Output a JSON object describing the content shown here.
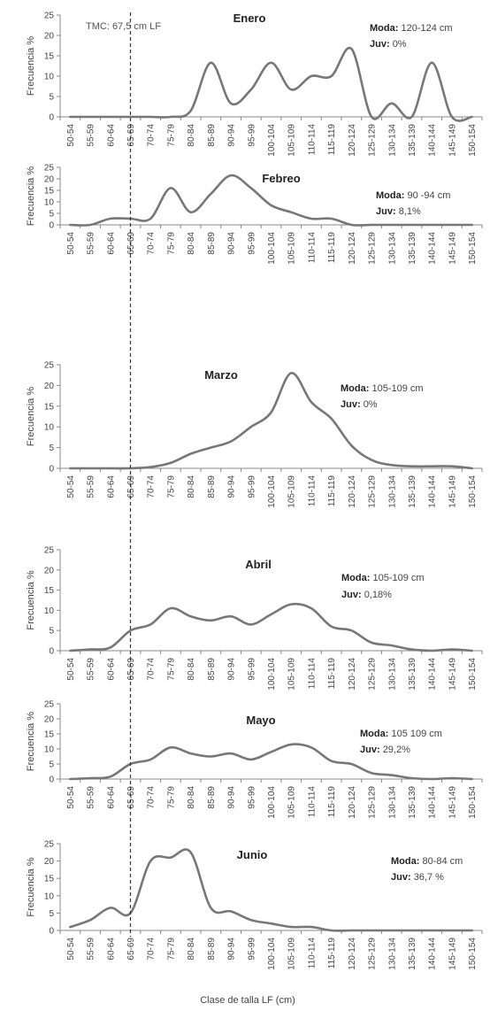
{
  "figure": {
    "xlabel": "Clase de talla LF (cm)",
    "tmc_label": "TMC: 67,5 cm LF",
    "tmc_value": 67.5
  },
  "chart_data": [
    {
      "type": "line",
      "title": "Enero",
      "ylabel": "Frecuencia %",
      "ylim": [
        0,
        25
      ],
      "yticks": [
        "0",
        "5",
        "10",
        "15",
        "20",
        "25"
      ],
      "categories": [
        "50-54",
        "55-59",
        "60-64",
        "65-69",
        "70-74",
        "75-79",
        "80-84",
        "85-89",
        "90-94",
        "95-99",
        "100-104",
        "105-109",
        "110-114",
        "115-119",
        "120-124",
        "125-129",
        "130-134",
        "135-139",
        "140-144",
        "145-149",
        "150-154"
      ],
      "values": [
        0,
        0,
        0,
        0,
        0,
        0,
        1.5,
        13.3,
        3.3,
        6.7,
        13.3,
        6.7,
        10,
        10,
        16.7,
        0,
        3.3,
        0,
        13.3,
        0,
        0
      ],
      "annotation": {
        "moda_label": "Moda:",
        "moda_value": "120-124 cm",
        "juv_label": "Juv:",
        "juv_value": "0%"
      }
    },
    {
      "type": "line",
      "title": "Febreo",
      "ylabel": "Frecuencia %",
      "ylim": [
        0,
        25
      ],
      "yticks": [
        "0",
        "5",
        "10",
        "15",
        "20",
        "25"
      ],
      "categories": [
        "50-54",
        "55-59",
        "60-64",
        "65-69",
        "70-74",
        "75-79",
        "80-84",
        "85-89",
        "90-94",
        "95-99",
        "100-104",
        "105-109",
        "110-114",
        "115-119",
        "120-124",
        "125-129",
        "130-134",
        "135-139",
        "140-144",
        "145-149",
        "150-154"
      ],
      "values": [
        0,
        0,
        2.7,
        2.7,
        2.7,
        16,
        5.5,
        13.5,
        21.5,
        16,
        8.5,
        5.5,
        2.7,
        2.7,
        0,
        0,
        0,
        0,
        0,
        0,
        0
      ],
      "annotation": {
        "moda_label": "Moda:",
        "moda_value": "90 -94 cm",
        "juv_label": "Juv:",
        "juv_value": "8,1%"
      }
    },
    {
      "type": "line",
      "title": "Marzo",
      "ylabel": "Frecuencia %",
      "ylim": [
        0,
        25
      ],
      "yticks": [
        "0",
        "5",
        "10",
        "15",
        "20",
        "25"
      ],
      "categories": [
        "50-54",
        "55-59",
        "60-64",
        "65-69",
        "70-74",
        "75-79",
        "80-84",
        "85-89",
        "90-94",
        "95-99",
        "100-104",
        "105-109",
        "110-114",
        "115-119",
        "120-124",
        "125-129",
        "130-134",
        "135-139",
        "140-144",
        "145-149",
        "150-154"
      ],
      "values": [
        0,
        0,
        0,
        0,
        0.3,
        1.3,
        3.5,
        5,
        6.5,
        10,
        13.5,
        23,
        16,
        12,
        5.5,
        2,
        0.8,
        0.5,
        0.5,
        0.5,
        0
      ],
      "annotation": {
        "moda_label": "Moda:",
        "moda_value": "105-109 cm",
        "juv_label": "Juv:",
        "juv_value": "0%"
      }
    },
    {
      "type": "line",
      "title": "Abril",
      "ylabel": "Frecuencia %",
      "ylim": [
        0,
        25
      ],
      "yticks": [
        "0",
        "5",
        "10",
        "15",
        "20",
        "25"
      ],
      "categories": [
        "50-54",
        "55-59",
        "60-64",
        "65-69",
        "70-74",
        "75-79",
        "80-84",
        "85-89",
        "90-94",
        "95-99",
        "100-104",
        "105-109",
        "110-114",
        "115-119",
        "120-124",
        "125-129",
        "130-134",
        "135-139",
        "140-144",
        "145-149",
        "150-154"
      ],
      "values": [
        0,
        0.3,
        0.8,
        5,
        6.5,
        10.5,
        8.5,
        7.5,
        8.5,
        6.5,
        9,
        11.5,
        10.5,
        6,
        5,
        2,
        1.3,
        0.3,
        0,
        0.3,
        0
      ],
      "annotation": {
        "moda_label": "Moda:",
        "moda_value": "105-109 cm",
        "juv_label": "Juv:",
        "juv_value": "0,18%"
      }
    },
    {
      "type": "line",
      "title": "Mayo",
      "ylabel": "Frecuencia %",
      "ylim": [
        0,
        25
      ],
      "yticks": [
        "0",
        "5",
        "10",
        "15",
        "20",
        "25"
      ],
      "categories": [
        "50-54",
        "55-59",
        "60-64",
        "65-69",
        "70-74",
        "75-79",
        "80-84",
        "85-89",
        "90-94",
        "95-99",
        "100-104",
        "105-109",
        "110-114",
        "115-119",
        "120-124",
        "125-129",
        "130-134",
        "135-139",
        "140-144",
        "145-149",
        "150-154"
      ],
      "values": [
        0,
        0.3,
        0.8,
        5,
        6.5,
        10.5,
        8.5,
        7.5,
        8.5,
        6.5,
        9,
        11.5,
        10.5,
        6,
        5,
        2,
        1.3,
        0.3,
        0,
        0.3,
        0
      ],
      "annotation": {
        "moda_label": "Moda:",
        "moda_value": "105 109 cm",
        "juv_label": "Juv:",
        "juv_value": "29,2%"
      }
    },
    {
      "type": "line",
      "title": "Junio",
      "ylabel": "Frecuencia %",
      "ylim": [
        0,
        25
      ],
      "yticks": [
        "0",
        "5",
        "10",
        "15",
        "20",
        "25"
      ],
      "categories": [
        "50-54",
        "55-59",
        "60-64",
        "65-69",
        "70-74",
        "75-79",
        "80-84",
        "85-89",
        "90-94",
        "95-99",
        "100-104",
        "105-109",
        "110-114",
        "115-119",
        "120-124",
        "125-129",
        "130-134",
        "135-139",
        "140-144",
        "145-149",
        "150-154"
      ],
      "values": [
        1,
        3,
        6.5,
        5,
        20,
        21,
        22.5,
        6.5,
        5.5,
        3,
        2,
        1,
        1,
        0,
        0,
        0,
        0,
        0,
        0,
        0,
        0
      ],
      "annotation": {
        "moda_label": "Moda:",
        "moda_value": "80-84 cm",
        "juv_label": "Juv:",
        "juv_value": "36,7 %"
      }
    }
  ]
}
